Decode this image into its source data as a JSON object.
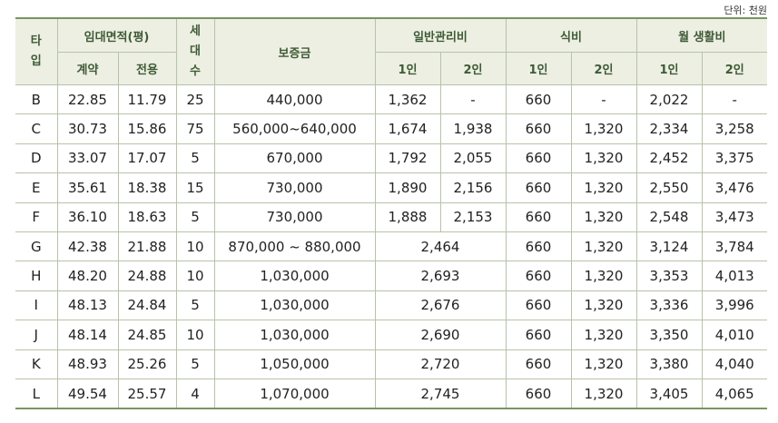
{
  "unit_label": "단위: 천원",
  "header": {
    "type_lines": [
      "타",
      "입"
    ],
    "area": "임대면적(평)",
    "contract": "계약",
    "exclusive": "전용",
    "households_lines": [
      "세",
      "대",
      "수"
    ],
    "deposit": "보증금",
    "mgmt": "일반관리비",
    "meal": "식비",
    "living": "월 생활비",
    "p1": "1인",
    "p2": "2인"
  },
  "rows": [
    {
      "type": "B",
      "contract": "22.85",
      "exclusive": "11.79",
      "households": "25",
      "deposit": "440,000",
      "mgmt1": "1,362",
      "mgmt2": "-",
      "meal1": "660",
      "meal2": "-",
      "living1": "2,022",
      "living2": "-"
    },
    {
      "type": "C",
      "contract": "30.73",
      "exclusive": "15.86",
      "households": "75",
      "deposit": "560,000~640,000",
      "mgmt1": "1,674",
      "mgmt2": "1,938",
      "meal1": "660",
      "meal2": "1,320",
      "living1": "2,334",
      "living2": "3,258"
    },
    {
      "type": "D",
      "contract": "33.07",
      "exclusive": "17.07",
      "households": "5",
      "deposit": "670,000",
      "mgmt1": "1,792",
      "mgmt2": "2,055",
      "meal1": "660",
      "meal2": "1,320",
      "living1": "2,452",
      "living2": "3,375"
    },
    {
      "type": "E",
      "contract": "35.61",
      "exclusive": "18.38",
      "households": "15",
      "deposit": "730,000",
      "mgmt1": "1,890",
      "mgmt2": "2,156",
      "meal1": "660",
      "meal2": "1,320",
      "living1": "2,550",
      "living2": "3,476"
    },
    {
      "type": "F",
      "contract": "36.10",
      "exclusive": "18.63",
      "households": "5",
      "deposit": "730,000",
      "mgmt1": "1,888",
      "mgmt2": "2,153",
      "meal1": "660",
      "meal2": "1,320",
      "living1": "2,548",
      "living2": "3,473"
    },
    {
      "type": "G",
      "contract": "42.38",
      "exclusive": "21.88",
      "households": "10",
      "deposit": "870,000 ~ 880,000",
      "mgmt": "2,464",
      "meal1": "660",
      "meal2": "1,320",
      "living1": "3,124",
      "living2": "3,784"
    },
    {
      "type": "H",
      "contract": "48.20",
      "exclusive": "24.88",
      "households": "10",
      "deposit": "1,030,000",
      "mgmt": "2,693",
      "meal1": "660",
      "meal2": "1,320",
      "living1": "3,353",
      "living2": "4,013"
    },
    {
      "type": "I",
      "contract": "48.13",
      "exclusive": "24.84",
      "households": "5",
      "deposit": "1,030,000",
      "mgmt": "2,676",
      "meal1": "660",
      "meal2": "1,320",
      "living1": "3,336",
      "living2": "3,996"
    },
    {
      "type": "J",
      "contract": "48.14",
      "exclusive": "24.85",
      "households": "10",
      "deposit": "1,030,000",
      "mgmt": "2,690",
      "meal1": "660",
      "meal2": "1,320",
      "living1": "3,350",
      "living2": "4,010"
    },
    {
      "type": "K",
      "contract": "48.93",
      "exclusive": "25.26",
      "households": "5",
      "deposit": "1,050,000",
      "mgmt": "2,720",
      "meal1": "660",
      "meal2": "1,320",
      "living1": "3,380",
      "living2": "4,040"
    },
    {
      "type": "L",
      "contract": "49.54",
      "exclusive": "25.57",
      "households": "4",
      "deposit": "1,070,000",
      "mgmt": "2,745",
      "meal1": "660",
      "meal2": "1,320",
      "living1": "3,405",
      "living2": "4,065"
    }
  ]
}
